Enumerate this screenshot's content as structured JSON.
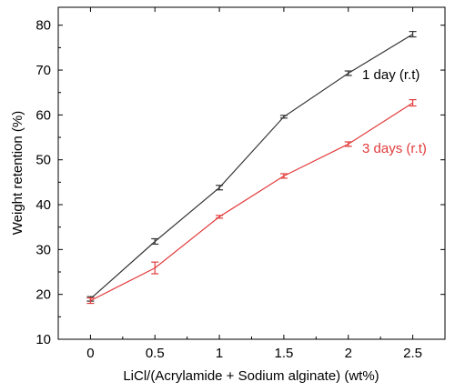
{
  "chart_data": {
    "type": "line",
    "title": "",
    "xlabel": "LiCl/(Acrylamide + Sodium alginate) (wt%)",
    "ylabel": "Weight retention (%)",
    "x": [
      0,
      0.5,
      1,
      1.5,
      2,
      2.5
    ],
    "x_ticks": [
      "0",
      "0.5",
      "1",
      "1.5",
      "2",
      "2.5"
    ],
    "xlim": [
      -0.25,
      2.75
    ],
    "ylim": [
      10,
      84
    ],
    "y_ticks": [
      10,
      20,
      30,
      40,
      50,
      60,
      70,
      80
    ],
    "grid": false,
    "legend": "none",
    "series": [
      {
        "name": "1 day (r.t)",
        "color": "#333333",
        "values": [
          19.0,
          31.8,
          43.8,
          59.6,
          69.3,
          78.0
        ],
        "errors": [
          0.5,
          0.6,
          0.5,
          0.3,
          0.5,
          0.6
        ]
      },
      {
        "name": "3 days (r.t)",
        "color": "#e23b3b",
        "values": [
          18.6,
          25.9,
          37.3,
          46.4,
          53.5,
          62.7
        ],
        "errors": [
          0.6,
          1.3,
          0.3,
          0.5,
          0.5,
          0.7
        ]
      }
    ]
  }
}
